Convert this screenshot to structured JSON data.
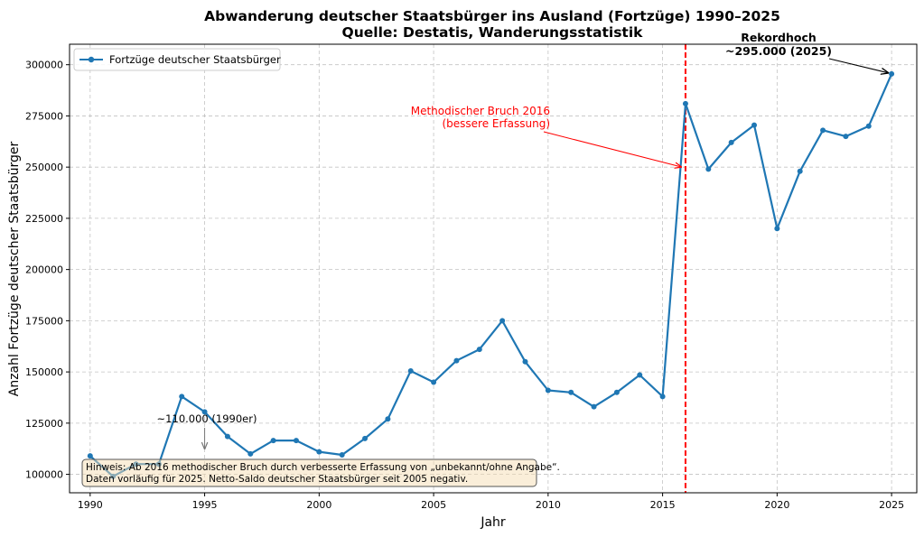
{
  "chart_data": {
    "type": "line",
    "title": "Abwanderung deutscher Staatsbürger ins Ausland (Fortzüge) 1990–2025",
    "subtitle": "Quelle: Destatis, Wanderungsstatistik",
    "xlabel": "Jahr",
    "ylabel": "Anzahl Fortzüge deutscher Staatsbürger",
    "xlim": [
      1989.1,
      2026.1
    ],
    "ylim": [
      91000,
      310000
    ],
    "x_ticks": [
      1990,
      1995,
      2000,
      2005,
      2010,
      2015,
      2020,
      2025
    ],
    "y_ticks": [
      100000,
      125000,
      150000,
      175000,
      200000,
      225000,
      250000,
      275000,
      300000
    ],
    "grid": true,
    "legend_position": "top-left",
    "series": [
      {
        "name": "Fortzüge deutscher Staatsbürger",
        "color": "#1f77b4",
        "x": [
          1990,
          1991,
          1992,
          1993,
          1994,
          1995,
          1996,
          1997,
          1998,
          1999,
          2000,
          2001,
          2002,
          2003,
          2004,
          2005,
          2006,
          2007,
          2008,
          2009,
          2010,
          2011,
          2012,
          2013,
          2014,
          2015,
          2016,
          2017,
          2018,
          2019,
          2020,
          2021,
          2022,
          2023,
          2024,
          2025
        ],
        "y": [
          109000,
          99000,
          105000,
          105000,
          138000,
          130500,
          118500,
          110000,
          116500,
          116500,
          111000,
          109500,
          117500,
          127000,
          150500,
          145000,
          155500,
          161000,
          175000,
          155000,
          141000,
          140000,
          133000,
          140000,
          148500,
          138000,
          281000,
          249000,
          262000,
          270500,
          220000,
          248000,
          268000,
          265000,
          270000,
          295500
        ]
      }
    ],
    "annotations": [
      {
        "text": "Methodischer Bruch 2016",
        "text2": "(bessere Erfassung)",
        "color": "#ff0000",
        "target_x": 2016,
        "target_y": 250000
      },
      {
        "text": "Rekordhoch",
        "text2": "~295.000 (2025)",
        "color": "#000000",
        "target_x": 2025,
        "target_y": 295500
      },
      {
        "text": "~110.000 (1990er)",
        "color": "#000000",
        "target_x": 1995,
        "target_y": 110000
      }
    ],
    "vline": {
      "x": 2016,
      "color": "#ff0000"
    },
    "note_lines": [
      "Hinweis: Ab 2016 methodischer Bruch durch verbesserte Erfassung von „unbekannt/ohne Angabe“.",
      "Daten vorläufig für 2025. Netto-Saldo deutscher Staatsbürger seit 2005 negativ."
    ]
  }
}
